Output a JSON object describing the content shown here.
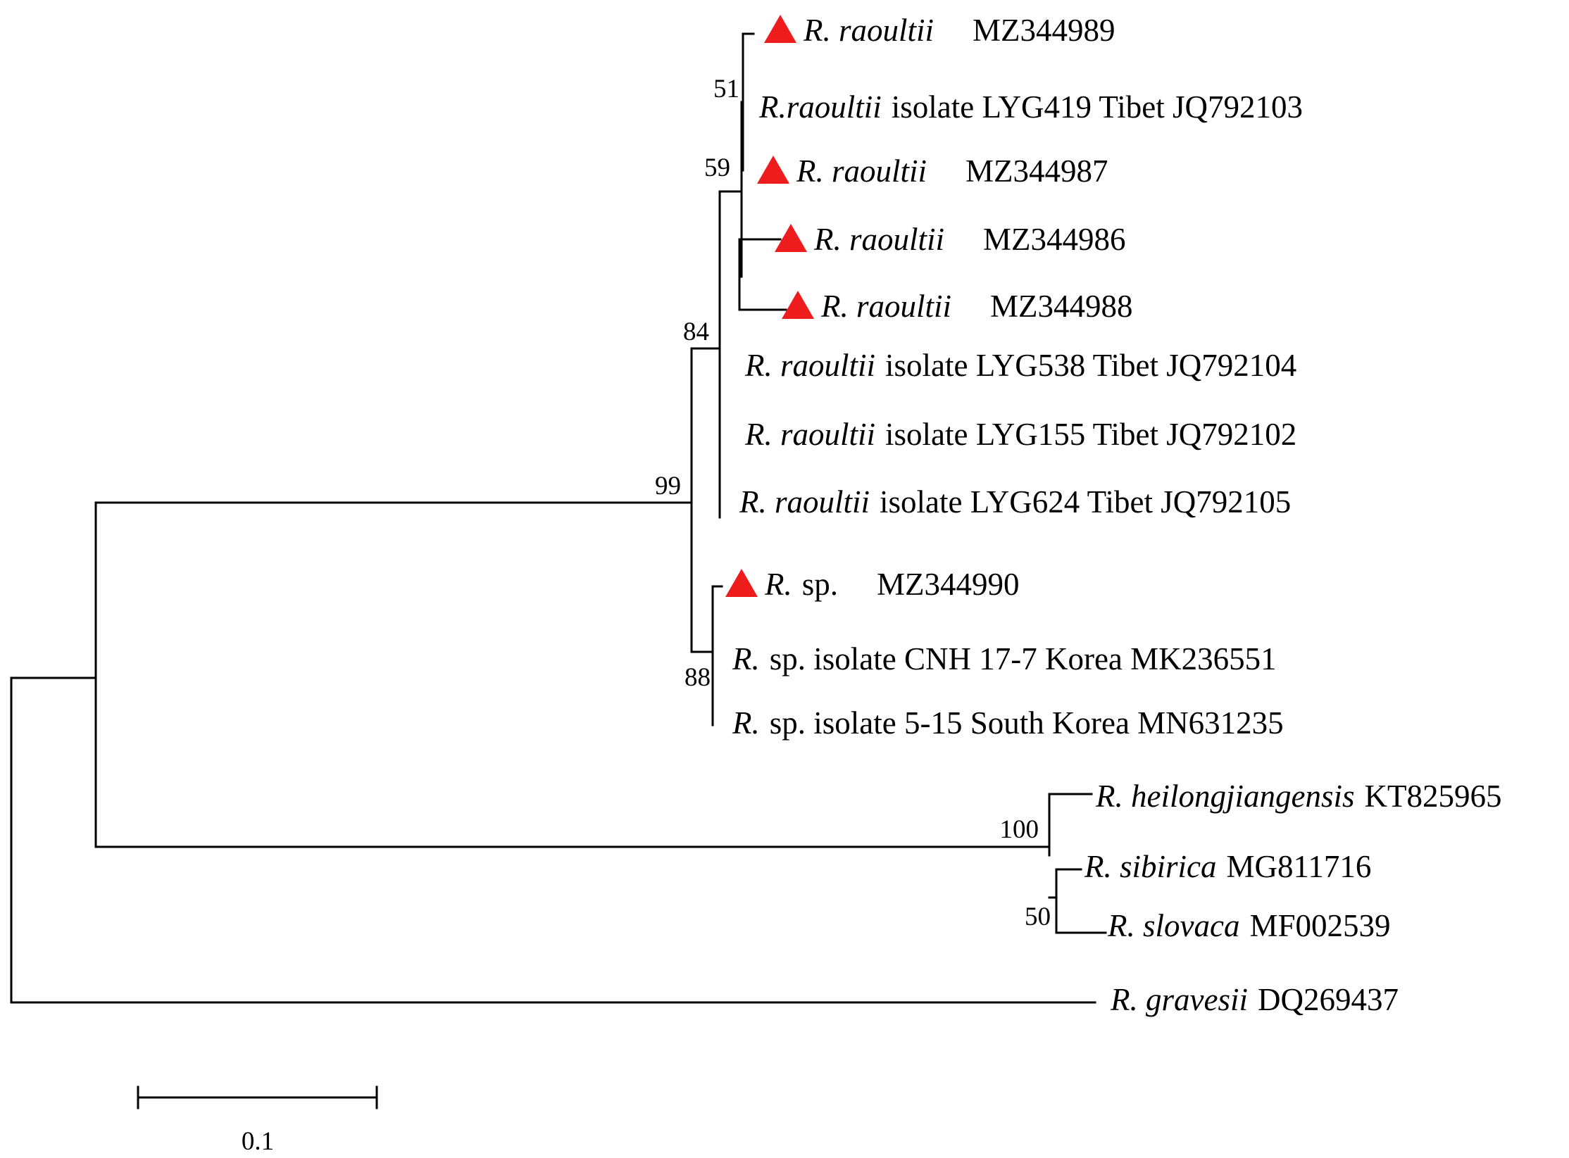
{
  "marker_color": "#ee1c1c",
  "taxa": [
    {
      "genus": "R. raoultii",
      "rest": "MZ344989",
      "marked": true,
      "gap": 55
    },
    {
      "genus": "R.raoultii",
      "rest": "isolate LYG419 Tibet JQ792103",
      "marked": false,
      "gap": 14
    },
    {
      "genus": "R. raoultii",
      "rest": "MZ344987",
      "marked": true,
      "gap": 55
    },
    {
      "genus": "R. raoultii",
      "rest": "MZ344986",
      "marked": true,
      "gap": 55
    },
    {
      "genus": "R. raoultii",
      "rest": "MZ344988",
      "marked": true,
      "gap": 55
    },
    {
      "genus": "R. raoultii",
      "rest": "isolate LYG538 Tibet JQ792104",
      "marked": false,
      "gap": 14
    },
    {
      "genus": "R. raoultii",
      "rest": "isolate LYG155 Tibet JQ792102",
      "marked": false,
      "gap": 14
    },
    {
      "genus": "R. raoultii",
      "rest": "isolate LYG624 Tibet JQ792105",
      "marked": false,
      "gap": 14
    },
    {
      "genus": "R.",
      "rest": "sp.",
      "accession": "MZ344990",
      "marked": true,
      "gap": 14,
      "gap2": 55
    },
    {
      "genus": "R.",
      "rest": "sp. isolate CNH 17-7 Korea MK236551",
      "marked": false,
      "gap": 14
    },
    {
      "genus": "R.",
      "rest": "sp. isolate 5-15 South Korea MN631235",
      "marked": false,
      "gap": 14
    },
    {
      "genus": "R. heilongjiangensis",
      "rest": "KT825965",
      "marked": false,
      "gap": 14
    },
    {
      "genus": "R. sibirica",
      "rest": "MG811716",
      "marked": false,
      "gap": 14
    },
    {
      "genus": "R. slovaca",
      "rest": "MF002539",
      "marked": false,
      "gap": 14
    },
    {
      "genus": "R. gravesii",
      "rest": "DQ269437",
      "marked": false,
      "gap": 14
    }
  ],
  "bootstrap": [
    "51",
    "59",
    "84",
    "99",
    "88",
    "100",
    "50"
  ],
  "scale_bar": {
    "label": "0.1"
  }
}
